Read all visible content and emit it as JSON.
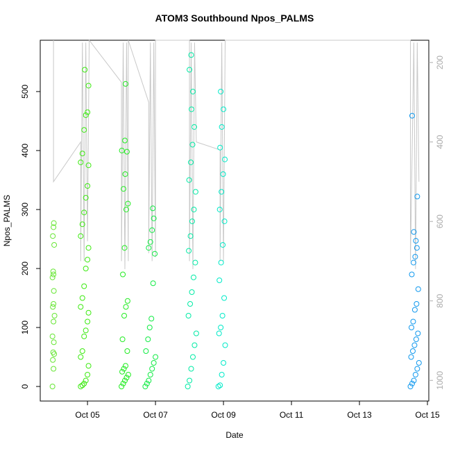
{
  "chart_data": {
    "type": "scatter",
    "title": "ATOM3 Southbound Npos_PALMS",
    "x_label": "Date",
    "y_label": "Npos_PALMS",
    "xlim": [
      3.61,
      15.04
    ],
    "xticks": [
      {
        "value": 5,
        "label": "Oct 05"
      },
      {
        "value": 7,
        "label": "Oct 07"
      },
      {
        "value": 9,
        "label": "Oct 09"
      },
      {
        "value": 11,
        "label": "Oct 11"
      },
      {
        "value": 13,
        "label": "Oct 13"
      },
      {
        "value": 15,
        "label": "Oct 15"
      }
    ],
    "ylim": [
      -24.7,
      587
    ],
    "yticks": [
      0,
      100,
      200,
      300,
      400,
      500
    ],
    "y2lim": [
      1052,
      144
    ],
    "y2ticks": [
      200,
      400,
      600,
      800,
      1000
    ],
    "series": [
      {
        "color": "#66e633",
        "x": [
          3.97,
          4.0,
          3.98,
          4.02,
          3.99,
          4.01,
          3.97,
          4.0,
          4.03,
          3.98,
          4.0,
          4.01,
          3.97,
          4.0,
          3.99,
          4.02,
          3.98,
          4.0,
          4.01
        ],
        "values": [
          0,
          30,
          45,
          55,
          58,
          75,
          85,
          110,
          120,
          135,
          140,
          162,
          185,
          190,
          195,
          240,
          255,
          270,
          277
        ]
      },
      {
        "color": "#3cea10",
        "x": [
          4.8,
          4.85,
          4.9,
          4.95,
          5.0,
          5.03,
          4.8,
          4.85,
          4.9,
          4.95,
          5.0,
          5.03,
          4.8,
          4.85,
          4.9,
          4.95,
          5.0,
          5.03,
          4.8,
          4.85,
          4.9,
          4.95,
          5.0,
          5.03,
          4.8,
          4.85,
          4.9,
          4.95,
          5.0,
          5.03,
          4.92
        ],
        "values": [
          0,
          2,
          5,
          10,
          20,
          35,
          50,
          60,
          85,
          95,
          110,
          125,
          135,
          150,
          170,
          200,
          215,
          235,
          255,
          275,
          295,
          320,
          340,
          375,
          380,
          395,
          435,
          460,
          465,
          510,
          537
        ]
      },
      {
        "color": "#22ec22",
        "x": [
          6.0,
          6.05,
          6.1,
          6.15,
          6.2,
          6.02,
          6.07,
          6.12,
          6.17,
          6.03,
          6.08,
          6.13,
          6.18,
          6.04,
          6.09,
          6.14,
          6.19,
          6.06,
          6.11,
          6.16,
          6.01,
          6.1,
          6.12
        ],
        "values": [
          0,
          5,
          10,
          15,
          20,
          25,
          30,
          35,
          60,
          80,
          120,
          135,
          145,
          190,
          235,
          300,
          310,
          335,
          360,
          398,
          400,
          417,
          513
        ]
      },
      {
        "color": "#11ec44",
        "x": [
          6.7,
          6.75,
          6.8,
          6.85,
          6.9,
          6.95,
          7.0,
          6.72,
          6.78,
          6.83,
          6.88,
          6.93,
          6.98,
          6.8,
          6.85,
          6.9,
          6.95,
          6.92
        ],
        "values": [
          0,
          5,
          10,
          20,
          30,
          40,
          50,
          60,
          80,
          100,
          115,
          175,
          225,
          235,
          245,
          265,
          285,
          302
        ]
      },
      {
        "color": "#00eba5",
        "x": [
          7.95,
          8.0,
          8.05,
          8.1,
          8.15,
          8.2,
          7.97,
          8.02,
          8.07,
          8.12,
          8.17,
          7.98,
          8.03,
          8.08,
          8.13,
          8.18,
          7.99,
          8.04,
          8.09,
          8.14,
          8.06,
          8.1,
          8.0,
          8.05
        ],
        "values": [
          0,
          10,
          30,
          50,
          70,
          90,
          120,
          140,
          160,
          185,
          210,
          230,
          255,
          280,
          300,
          330,
          350,
          380,
          410,
          440,
          470,
          500,
          537,
          562
        ]
      },
      {
        "color": "#00eac8",
        "x": [
          8.85,
          8.9,
          8.95,
          9.0,
          9.05,
          8.87,
          8.92,
          8.97,
          9.02,
          8.88,
          8.93,
          8.98,
          9.03,
          8.89,
          8.94,
          8.99,
          9.04,
          8.9,
          8.95,
          9.0,
          8.92
        ],
        "values": [
          0,
          2,
          20,
          40,
          70,
          90,
          100,
          120,
          150,
          180,
          210,
          240,
          280,
          300,
          330,
          360,
          385,
          405,
          440,
          470,
          500
        ]
      },
      {
        "color": "#1199ee",
        "x": [
          14.5,
          14.55,
          14.6,
          14.65,
          14.7,
          14.75,
          14.52,
          14.57,
          14.62,
          14.67,
          14.72,
          14.53,
          14.58,
          14.63,
          14.68,
          14.73,
          14.54,
          14.59,
          14.64,
          14.69,
          14.66,
          14.6,
          14.7,
          14.55
        ],
        "values": [
          0,
          5,
          10,
          20,
          30,
          40,
          50,
          60,
          70,
          80,
          90,
          100,
          110,
          130,
          140,
          165,
          190,
          210,
          220,
          235,
          247,
          262,
          322,
          459
        ]
      },
      {
        "color": "#c8c8c8",
        "axis": "y2",
        "x": [
          4.0,
          4.0,
          4.8,
          4.8,
          4.85,
          4.9,
          4.95,
          5.0,
          5.05,
          6.0,
          6.0,
          6.05,
          6.1,
          6.15,
          6.2,
          6.2,
          6.8,
          6.8,
          6.85,
          6.9,
          6.95,
          7.0,
          7.0,
          8.0,
          8.0,
          8.05,
          8.1,
          8.15,
          8.2,
          8.9,
          8.9,
          8.95,
          9.0,
          9.05,
          14.5,
          14.5,
          14.6,
          14.65,
          14.7,
          14.75
        ],
        "values": [
          144,
          500,
          400,
          700,
          150,
          700,
          150,
          650,
          144,
          250,
          700,
          150,
          720,
          150,
          700,
          144,
          300,
          680,
          150,
          700,
          150,
          690,
          144,
          144,
          700,
          150,
          720,
          150,
          400,
          420,
          700,
          150,
          700,
          144,
          144,
          700,
          150,
          720,
          150,
          500
        ]
      }
    ]
  }
}
